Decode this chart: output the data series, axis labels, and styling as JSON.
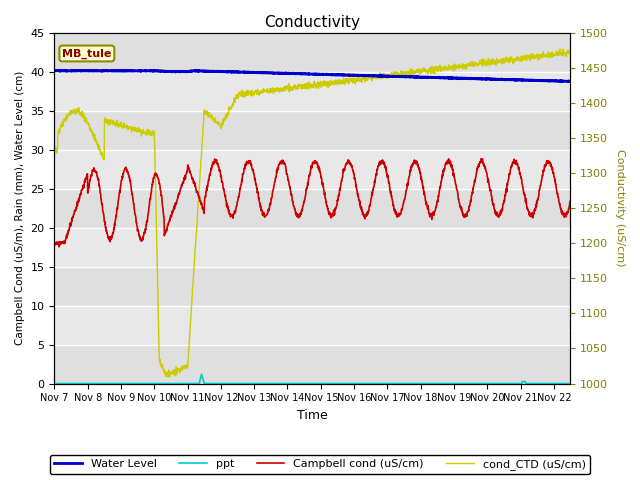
{
  "title": "Conductivity",
  "xlabel": "Time",
  "ylabel_left": "Campbell Cond (uS/m), Rain (mm), Water Level (cm)",
  "ylabel_right": "Conductivity (uS/cm)",
  "site_label": "MB_tule",
  "ylim_left": [
    0,
    45
  ],
  "ylim_right": [
    1000,
    1500
  ],
  "x_tick_labels": [
    "Nov 7",
    "Nov 8",
    "Nov 9",
    "Nov 10",
    "Nov 11",
    "Nov 12",
    "Nov 13",
    "Nov 14",
    "Nov 15",
    "Nov 16",
    "Nov 17",
    "Nov 18",
    "Nov 19",
    "Nov 20",
    "Nov 21",
    "Nov 22"
  ],
  "bg_color": "#e8e8e8",
  "water_color": "#0000cc",
  "ppt_color": "#00cccc",
  "campbell_color": "#cc0000",
  "ctd_color": "#cccc00",
  "right_label_color": "#808000"
}
